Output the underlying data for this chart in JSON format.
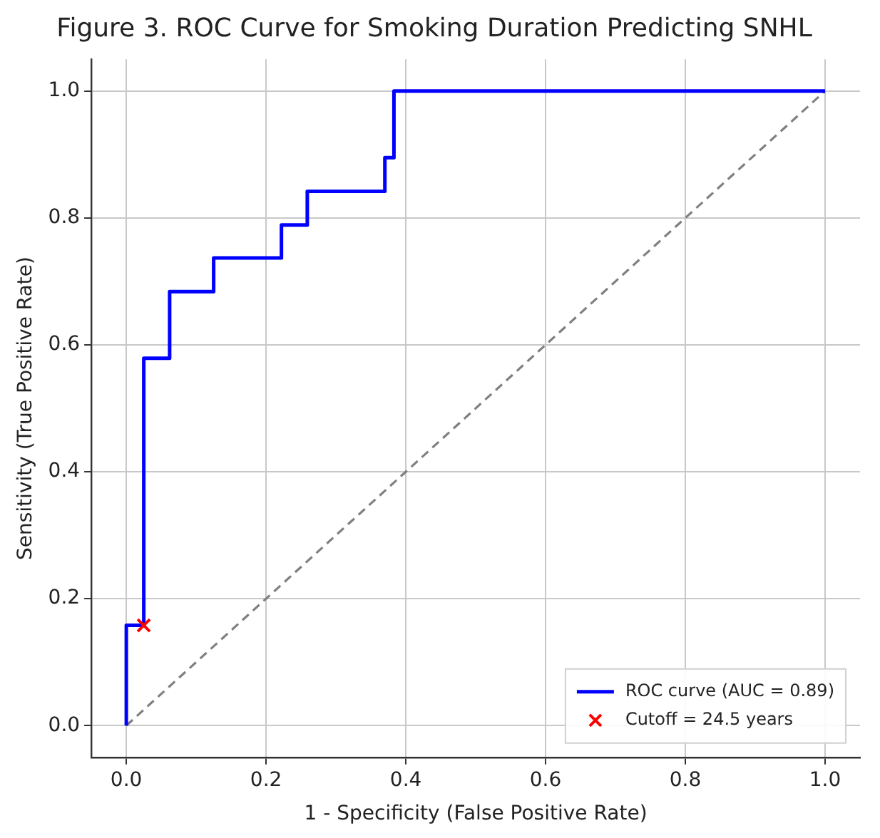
{
  "chart_data": {
    "type": "step",
    "title": "Figure 3. ROC Curve for Smoking Duration Predicting SNHL",
    "xlabel": "1 - Specificity (False Positive Rate)",
    "ylabel": "Sensitivity (True Positive Rate)",
    "xlim": [
      -0.05,
      1.05
    ],
    "ylim": [
      -0.05,
      1.05
    ],
    "xticks": [
      {
        "value": 0,
        "label": "0.0"
      },
      {
        "value": 0.2,
        "label": "0.2"
      },
      {
        "value": 0.4,
        "label": "0.4"
      },
      {
        "value": 0.6,
        "label": "0.6"
      },
      {
        "value": 0.8,
        "label": "0.8"
      },
      {
        "value": 1,
        "label": "1.0"
      }
    ],
    "yticks": [
      {
        "value": 0,
        "label": "0.0"
      },
      {
        "value": 0.2,
        "label": "0.2"
      },
      {
        "value": 0.4,
        "label": "0.4"
      },
      {
        "value": 0.6,
        "label": "0.6"
      },
      {
        "value": 0.8,
        "label": "0.8"
      },
      {
        "value": 1,
        "label": "1.0"
      }
    ],
    "grid": true,
    "legend": "bottom right",
    "series": [
      {
        "name": "ROC curve (AUC = 0.89)",
        "color": "#0000ff",
        "x": [
          0,
          0,
          0.025,
          0.062,
          0.125,
          0.222,
          0.259,
          0.37,
          0.383,
          1
        ],
        "values": [
          0,
          0.158,
          0.579,
          0.684,
          0.737,
          0.789,
          0.842,
          0.895,
          1,
          1
        ]
      },
      {
        "type": "line",
        "color": "#808080",
        "line_style": "dashed",
        "x": [
          0,
          1
        ],
        "values": [
          0,
          1
        ]
      },
      {
        "name": "Cutoff = 24.5 years",
        "type": "scatter",
        "color": "#ff0000",
        "marker": "cross",
        "x": [
          0.025
        ],
        "values": [
          0.158
        ]
      }
    ]
  }
}
